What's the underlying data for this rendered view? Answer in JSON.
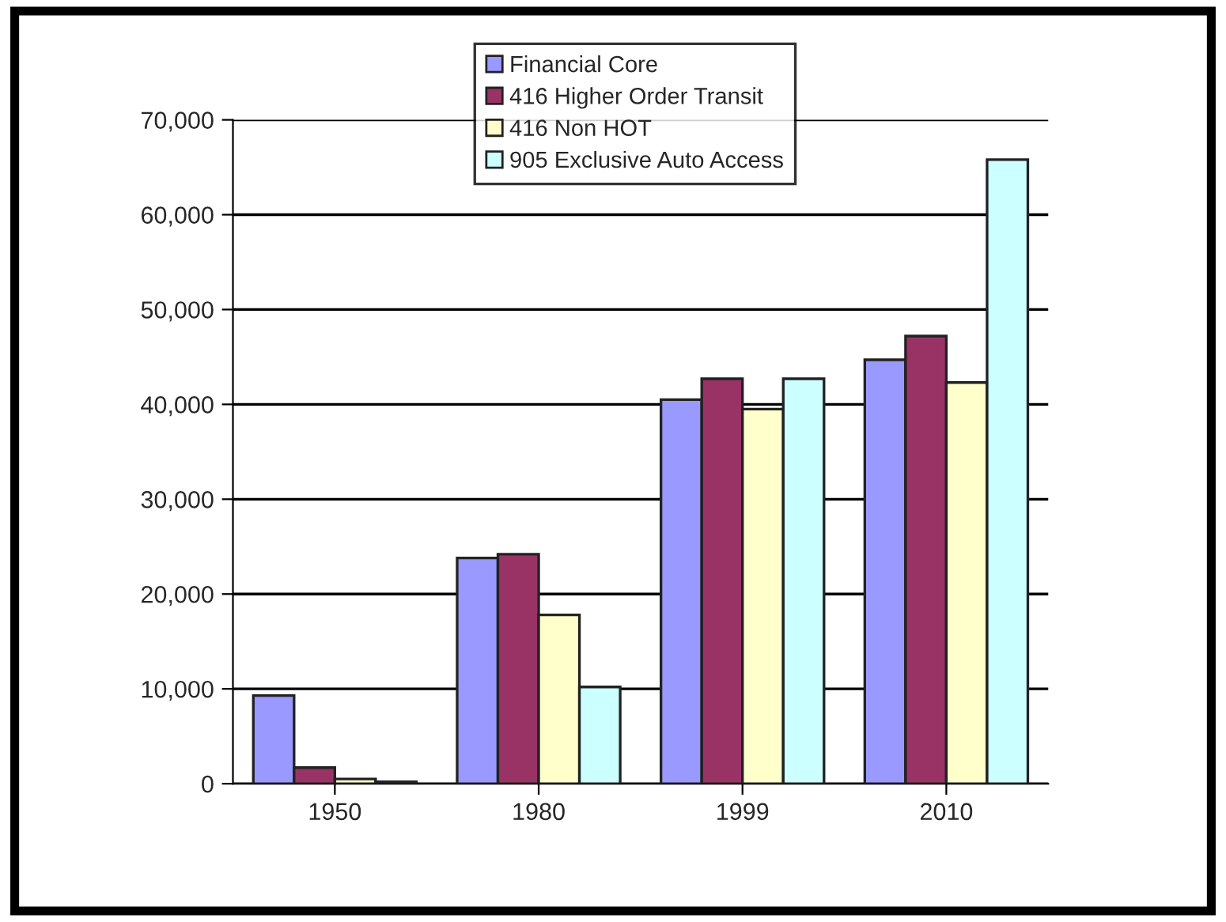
{
  "chart_data": {
    "type": "bar",
    "categories": [
      "1950",
      "1980",
      "1999",
      "2010"
    ],
    "series": [
      {
        "name": "Financial Core",
        "color": "#9999ff",
        "values": [
          9300,
          23800,
          40500,
          44700
        ]
      },
      {
        "name": "416 Higher Order Transit",
        "color": "#993366",
        "values": [
          1700,
          24200,
          42700,
          47200
        ]
      },
      {
        "name": "416 Non HOT",
        "color": "#ffffcc",
        "values": [
          500,
          17800,
          39500,
          42300
        ]
      },
      {
        "name": "905 Exclusive Auto Access",
        "color": "#ccffff",
        "values": [
          200,
          10200,
          42700,
          65800
        ]
      }
    ],
    "ylim": [
      0,
      70000
    ],
    "yticks": [
      {
        "value": 0,
        "label": "0"
      },
      {
        "value": 10000,
        "label": "10,000"
      },
      {
        "value": 20000,
        "label": "20,000"
      },
      {
        "value": 30000,
        "label": "30,000"
      },
      {
        "value": 40000,
        "label": "40,000"
      },
      {
        "value": 50000,
        "label": "50,000"
      },
      {
        "value": 60000,
        "label": "60,000"
      },
      {
        "value": 70000,
        "label": "70,000"
      }
    ],
    "grid": "y",
    "legend": "top"
  }
}
